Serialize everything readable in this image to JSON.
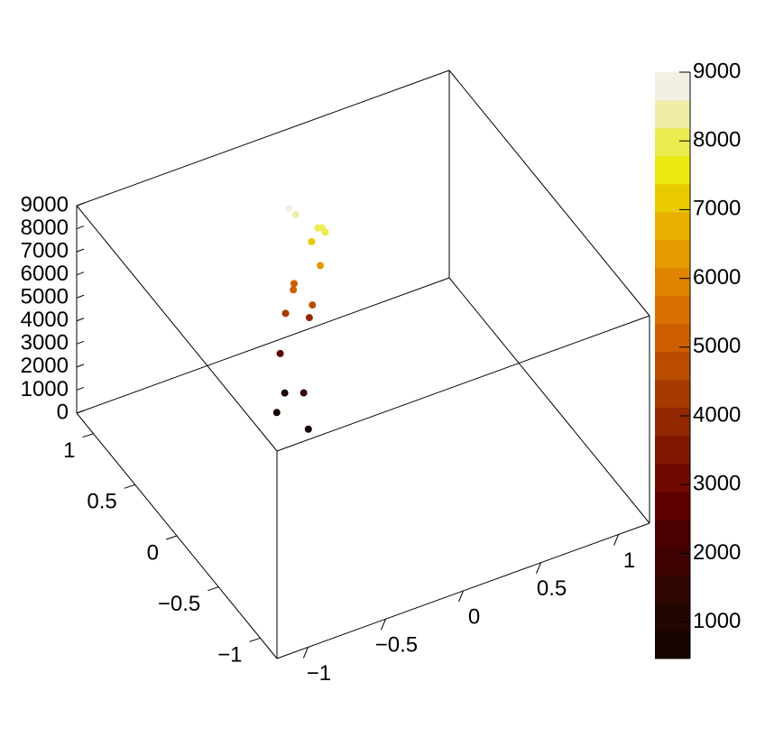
{
  "chart_data": {
    "type": "scatter3d",
    "x": [
      -0.25,
      -0.15,
      -0.17,
      -0.13,
      -0.19,
      -0.15,
      -0.04,
      -0.02,
      -0.1,
      -0.09,
      0.02,
      -0.02,
      0.03,
      0.02,
      0.04,
      -0.1,
      -0.14
    ],
    "y": [
      0.57,
      0.66,
      0.34,
      0.47,
      0.64,
      0.65,
      0.57,
      0.57,
      0.65,
      0.66,
      0.55,
      0.58,
      0.51,
      0.58,
      0.57,
      0.62,
      0.63
    ],
    "z": [
      500,
      700,
      600,
      1500,
      2600,
      4200,
      4100,
      4600,
      5100,
      5300,
      6300,
      7300,
      7900,
      7800,
      7800,
      8500,
      8800
    ],
    "xlim": [
      -1.2,
      1.2
    ],
    "ylim": [
      -1.2,
      1.2
    ],
    "zlim": [
      0,
      9000
    ],
    "xticks": [
      {
        "value": -1,
        "label": "−1"
      },
      {
        "value": -0.5,
        "label": "−0.5"
      },
      0,
      0.5,
      1
    ],
    "yticks": [
      {
        "value": -1,
        "label": "−1"
      },
      {
        "value": -0.5,
        "label": "−0.5"
      },
      0,
      0.5,
      1
    ],
    "zticks": [
      0,
      1000,
      2000,
      3000,
      4000,
      5000,
      6000,
      7000,
      8000,
      9000
    ],
    "colorbar_lim": [
      470,
      9000
    ],
    "colorbar_ticks": [
      1000,
      2000,
      3000,
      4000,
      5000,
      6000,
      7000,
      8000,
      9000
    ],
    "palette": [
      "#150300",
      "#220600",
      "#300600",
      "#3e0300",
      "#4c0000",
      "#5e0000",
      "#700a00",
      "#801800",
      "#922800",
      "#a63a00",
      "#ba4c00",
      "#cc5e00",
      "#d87000",
      "#e08400",
      "#e49a00",
      "#e8b000",
      "#eacb00",
      "#ebea10",
      "#ebec50",
      "#efeda8",
      "#f2f0e0"
    ]
  }
}
